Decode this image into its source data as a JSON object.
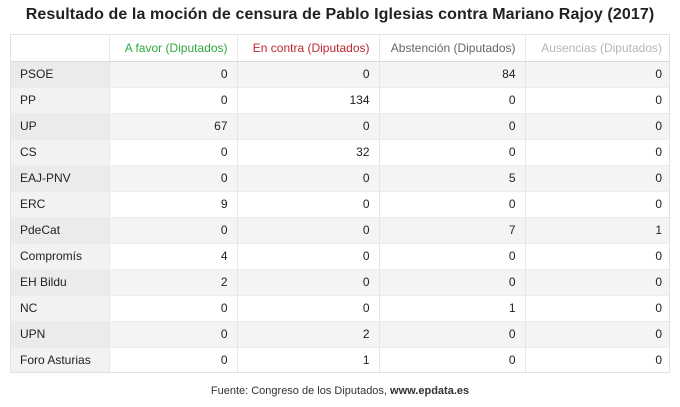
{
  "chart_data": {
    "type": "table",
    "title": "Resultado de la moción de censura de Pablo Iglesias contra Mariano Rajoy (2017)",
    "columns": [
      {
        "key": "favor",
        "label": "A favor (Diputados)",
        "color": "#2eaa3c"
      },
      {
        "key": "contra",
        "label": "En contra (Diputados)",
        "color": "#c0282e"
      },
      {
        "key": "abstencion",
        "label": "Abstención (Diputados)",
        "color": "#666666"
      },
      {
        "key": "ausencias",
        "label": "Ausencias (Diputados)",
        "color": "#b5b5b5"
      }
    ],
    "rows": [
      {
        "party": "PSOE",
        "values": [
          0,
          0,
          84,
          0
        ]
      },
      {
        "party": "PP",
        "values": [
          0,
          134,
          0,
          0
        ]
      },
      {
        "party": "UP",
        "values": [
          67,
          0,
          0,
          0
        ]
      },
      {
        "party": "CS",
        "values": [
          0,
          32,
          0,
          0
        ]
      },
      {
        "party": "EAJ-PNV",
        "values": [
          0,
          0,
          5,
          0
        ]
      },
      {
        "party": "ERC",
        "values": [
          9,
          0,
          0,
          0
        ]
      },
      {
        "party": "PdeCat",
        "values": [
          0,
          0,
          7,
          1
        ]
      },
      {
        "party": "Compromís",
        "values": [
          4,
          0,
          0,
          0
        ]
      },
      {
        "party": "EH Bildu",
        "values": [
          2,
          0,
          0,
          0
        ]
      },
      {
        "party": "NC",
        "values": [
          0,
          0,
          1,
          0
        ]
      },
      {
        "party": "UPN",
        "values": [
          0,
          2,
          0,
          0
        ]
      },
      {
        "party": "Foro Asturias",
        "values": [
          0,
          1,
          0,
          0
        ]
      }
    ]
  },
  "source": {
    "prefix": "Fuente: Congreso de los Diputados, ",
    "site": "www.epdata.es"
  }
}
